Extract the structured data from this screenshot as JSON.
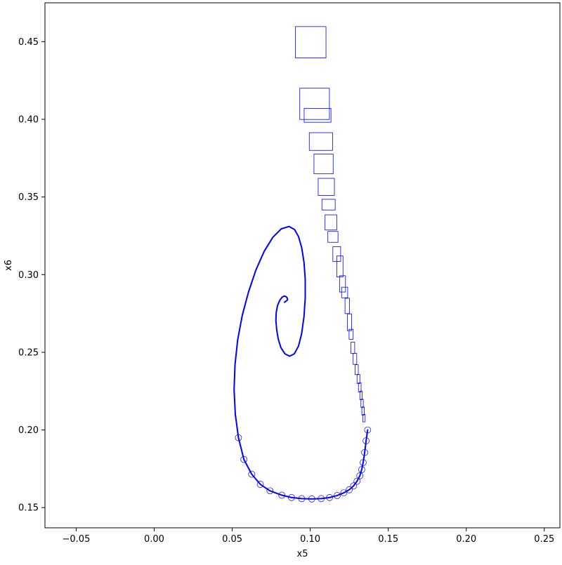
{
  "chart_data": {
    "type": "line",
    "title": "",
    "xlabel": "x5",
    "ylabel": "x6",
    "xlim": [
      -0.07,
      0.26
    ],
    "ylim": [
      0.137,
      0.475
    ],
    "x_ticks": [
      -0.05,
      0.0,
      0.05,
      0.1,
      0.15,
      0.2,
      0.25
    ],
    "x_tick_labels": [
      "−0.05",
      "0.00",
      "0.05",
      "0.10",
      "0.15",
      "0.20",
      "0.25"
    ],
    "y_ticks": [
      0.15,
      0.2,
      0.25,
      0.3,
      0.35,
      0.4,
      0.45
    ],
    "y_tick_labels": [
      "0.15",
      "0.20",
      "0.25",
      "0.30",
      "0.35",
      "0.40",
      "0.45"
    ],
    "grid": false,
    "legend": "none",
    "line_color": "#0000ff",
    "series": [
      {
        "style": "reachable-set boxes",
        "boxes": [
          [
            0.0905,
            0.1101,
            0.4395,
            0.4597
          ],
          [
            0.0933,
            0.1123,
            0.3999,
            0.42
          ],
          [
            0.0961,
            0.1133,
            0.3981,
            0.407
          ],
          [
            0.0994,
            0.1143,
            0.38,
            0.3914
          ],
          [
            0.1024,
            0.1147,
            0.3649,
            0.3776
          ],
          [
            0.1051,
            0.1155,
            0.351,
            0.362
          ],
          [
            0.1075,
            0.116,
            0.3416,
            0.3485
          ],
          [
            0.1095,
            0.117,
            0.3287,
            0.3385
          ],
          [
            0.1113,
            0.1178,
            0.3208,
            0.3278
          ],
          [
            0.1145,
            0.1195,
            0.3085,
            0.318
          ],
          [
            0.117,
            0.121,
            0.2985,
            0.312
          ],
          [
            0.1188,
            0.1226,
            0.2888,
            0.2993
          ],
          [
            0.1201,
            0.124,
            0.2851,
            0.2919
          ],
          [
            0.1223,
            0.1252,
            0.2749,
            0.2848
          ],
          [
            0.1238,
            0.1265,
            0.2639,
            0.2747
          ],
          [
            0.1249,
            0.1275,
            0.2584,
            0.2648
          ],
          [
            0.1261,
            0.1285,
            0.2492,
            0.2565
          ],
          [
            0.1275,
            0.1298,
            0.2422,
            0.2493
          ],
          [
            0.1288,
            0.1308,
            0.2356,
            0.242
          ],
          [
            0.13,
            0.1318,
            0.2299,
            0.2358
          ],
          [
            0.1309,
            0.1326,
            0.2245,
            0.2304
          ],
          [
            0.1318,
            0.1333,
            0.2195,
            0.225
          ],
          [
            0.1325,
            0.134,
            0.2144,
            0.2198
          ],
          [
            0.1331,
            0.1346,
            0.2096,
            0.2148
          ],
          [
            0.1337,
            0.1352,
            0.2052,
            0.21
          ]
        ]
      },
      {
        "style": "trajectory",
        "x": [
          0.1368,
          0.1358,
          0.1349,
          0.1339,
          0.133,
          0.1318,
          0.13,
          0.1278,
          0.125,
          0.1215,
          0.1173,
          0.1124,
          0.107,
          0.101,
          0.0945,
          0.088,
          0.0818,
          0.0742,
          0.068,
          0.0625,
          0.0575,
          0.054,
          0.052,
          0.0512,
          0.0518,
          0.0535,
          0.0565,
          0.0605,
          0.0652,
          0.0705,
          0.076,
          0.0815,
          0.0864,
          0.09,
          0.0925,
          0.0945,
          0.096,
          0.0968,
          0.0968,
          0.096,
          0.0945,
          0.0925,
          0.0898,
          0.0868,
          0.0838,
          0.0812,
          0.0795,
          0.0785,
          0.078,
          0.0782,
          0.079,
          0.0805,
          0.082,
          0.0834,
          0.0846,
          0.0853,
          0.0855,
          0.0852,
          0.0846,
          0.084,
          0.0835
        ],
        "y": [
          0.2,
          0.193,
          0.1855,
          0.179,
          0.1745,
          0.1705,
          0.167,
          0.164,
          0.1615,
          0.1595,
          0.1578,
          0.1565,
          0.1558,
          0.1556,
          0.1558,
          0.1565,
          0.158,
          0.1608,
          0.165,
          0.1715,
          0.181,
          0.195,
          0.21,
          0.226,
          0.242,
          0.258,
          0.274,
          0.289,
          0.303,
          0.315,
          0.324,
          0.3295,
          0.331,
          0.329,
          0.3245,
          0.3175,
          0.308,
          0.297,
          0.285,
          0.273,
          0.262,
          0.254,
          0.249,
          0.2475,
          0.249,
          0.253,
          0.2585,
          0.2645,
          0.2705,
          0.2755,
          0.28,
          0.2835,
          0.2855,
          0.2862,
          0.2858,
          0.2848,
          0.284,
          0.2835,
          0.283,
          0.2826,
          0.2822
        ]
      }
    ]
  }
}
